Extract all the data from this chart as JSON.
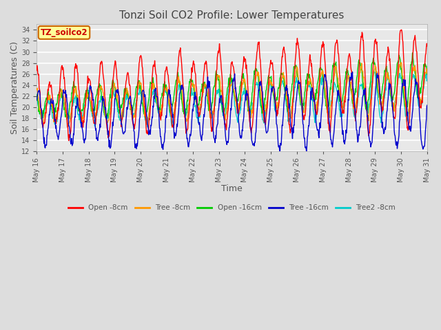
{
  "title": "Tonzi Soil CO2 Profile: Lower Temperatures",
  "xlabel": "Time",
  "ylabel": "Soil Temperatures (C)",
  "ylim": [
    12,
    35
  ],
  "yticks": [
    12,
    14,
    16,
    18,
    20,
    22,
    24,
    26,
    28,
    30,
    32,
    34
  ],
  "legend_label": "TZ_soilco2",
  "series_labels": [
    "Open -8cm",
    "Tree -8cm",
    "Open -16cm",
    "Tree -16cm",
    "Tree2 -8cm"
  ],
  "series_colors": [
    "#ff0000",
    "#ff9900",
    "#00cc00",
    "#0000cc",
    "#00cccc"
  ],
  "background_color": "#dddddd",
  "plot_bg_color": "#e8e8e8",
  "n_points": 900,
  "start_day": 16,
  "end_day": 31,
  "grid_color": "#ffffff",
  "title_color": "#444444",
  "tick_label_fontsize": 7,
  "axis_label_fontsize": 9,
  "title_fontsize": 11
}
